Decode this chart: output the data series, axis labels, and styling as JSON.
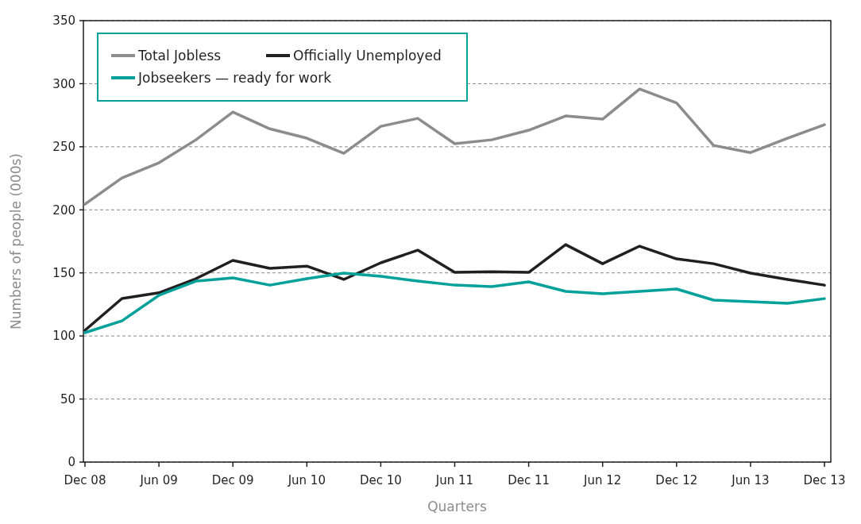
{
  "chart_data": {
    "type": "line",
    "xlabel": "Quarters",
    "ylabel": "Numbers of people (000s)",
    "categories": [
      "Dec 08",
      null,
      "Jun 09",
      null,
      "Dec 09",
      null,
      "Jun 10",
      null,
      "Dec 10",
      null,
      "Jun 11",
      null,
      "Dec 11",
      null,
      "Jun 12",
      null,
      "Dec 12",
      null,
      "Jun 13",
      null,
      "Dec 13"
    ],
    "series": [
      {
        "name": "Total Jobless",
        "color": "#8c8c8e",
        "values": [
          204.5,
          225.3,
          237.3,
          255.5,
          277.5,
          264.2,
          256.8,
          244.8,
          266.2,
          272.5,
          252.4,
          255.5,
          263.1,
          274.4,
          271.9,
          295.8,
          284.8,
          251.1,
          245.4,
          256.8,
          267.5
        ]
      },
      {
        "name": "Officially Unemployed",
        "color": "#231f20",
        "values": [
          104.5,
          129.7,
          134.2,
          145.4,
          159.9,
          153.6,
          155.4,
          144.8,
          158.0,
          168.0,
          150.4,
          151.0,
          150.4,
          172.4,
          157.3,
          171.2,
          161.1,
          157.3,
          149.8,
          144.8,
          140.3
        ]
      },
      {
        "name": "Jobseekers — ready for work",
        "color": "#00a19a",
        "values": [
          102.6,
          112.0,
          132.2,
          143.5,
          146.0,
          140.3,
          145.4,
          149.8,
          147.3,
          143.5,
          140.3,
          139.1,
          142.9,
          135.3,
          133.4,
          135.3,
          137.2,
          128.4,
          127.1,
          125.9,
          129.6
        ]
      }
    ],
    "ylim": [
      0,
      350
    ],
    "yticks": [
      0,
      50,
      100,
      150,
      200,
      250,
      300,
      350
    ],
    "grid": "y",
    "legend": "top left",
    "marker": "none",
    "line_style": "solid"
  }
}
